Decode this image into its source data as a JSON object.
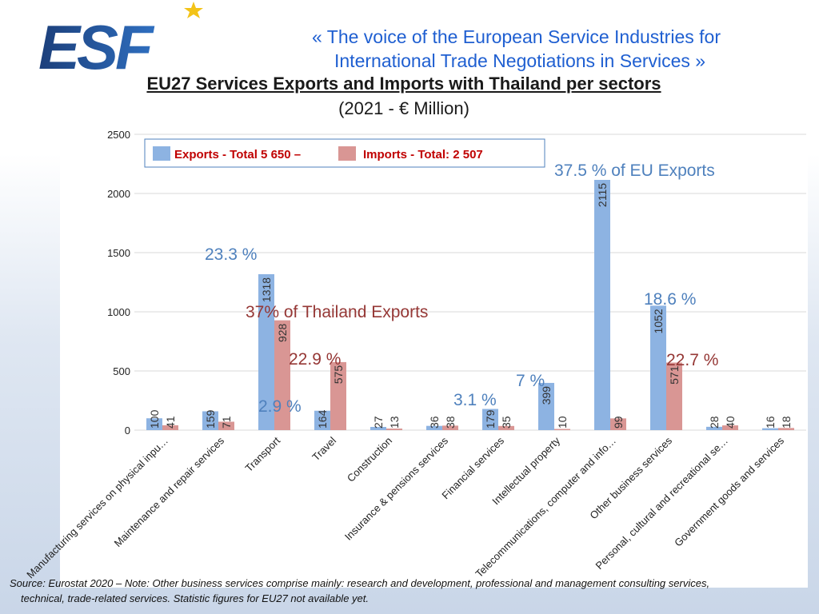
{
  "header": {
    "logo_text": "ESF",
    "tagline_line1": "«  The voice of the European Service Industries for",
    "tagline_line2": "International Trade Negotiations in Services  »",
    "title": "EU27 Services Exports and Imports with Thailand per sectors",
    "subtitle": "(2021 - € Million)"
  },
  "colors": {
    "exports": "#8db3e2",
    "imports": "#d99694",
    "accent_blue": "#4f81bd",
    "accent_red": "#953735",
    "tagline": "#1f5fd1"
  },
  "chart_data": {
    "type": "bar",
    "categories": [
      "Manufacturing services on physical inpu…",
      "Maintenance and repair services",
      "Transport",
      "Travel",
      "Construction",
      "Insurance & pensions services",
      "Financial services",
      "Intellectual property",
      "Telecommunications, computer and info…",
      "Other business services",
      "Personal, cultural and recreational se…",
      "Government goods and services"
    ],
    "series": [
      {
        "name": "Exports - Total 5 650 –",
        "values": [
          100,
          159,
          1318,
          164,
          27,
          36,
          179,
          399,
          2115,
          1052,
          28,
          16
        ]
      },
      {
        "name": "Imports - Total: 2 507",
        "values": [
          41,
          71,
          928,
          575,
          13,
          38,
          35,
          10,
          99,
          571,
          40,
          18
        ]
      }
    ],
    "yticks": [
      0,
      500,
      1000,
      1500,
      2000,
      2500
    ],
    "ylim": [
      0,
      2500
    ],
    "grid": true,
    "legend": "top-left",
    "annotations": [
      {
        "text": "23.3 %",
        "color": "blue"
      },
      {
        "text": "37% of Thailand Exports",
        "color": "red"
      },
      {
        "text": "22.9 %",
        "color": "red"
      },
      {
        "text": "2.9 %",
        "color": "blue"
      },
      {
        "text": "3.1 %",
        "color": "blue"
      },
      {
        "text": "7 %",
        "color": "blue"
      },
      {
        "text": "37.5 % of EU Exports",
        "color": "blue"
      },
      {
        "text": "18.6 %",
        "color": "blue"
      },
      {
        "text": "22.7 %",
        "color": "red"
      }
    ]
  },
  "footnote": {
    "line1": "Source: Eurostat 2020 – Note: Other business services comprise mainly: research and development, professional and management consulting services,",
    "line2": "technical, trade-related services. Statistic figures for EU27 not available yet."
  }
}
